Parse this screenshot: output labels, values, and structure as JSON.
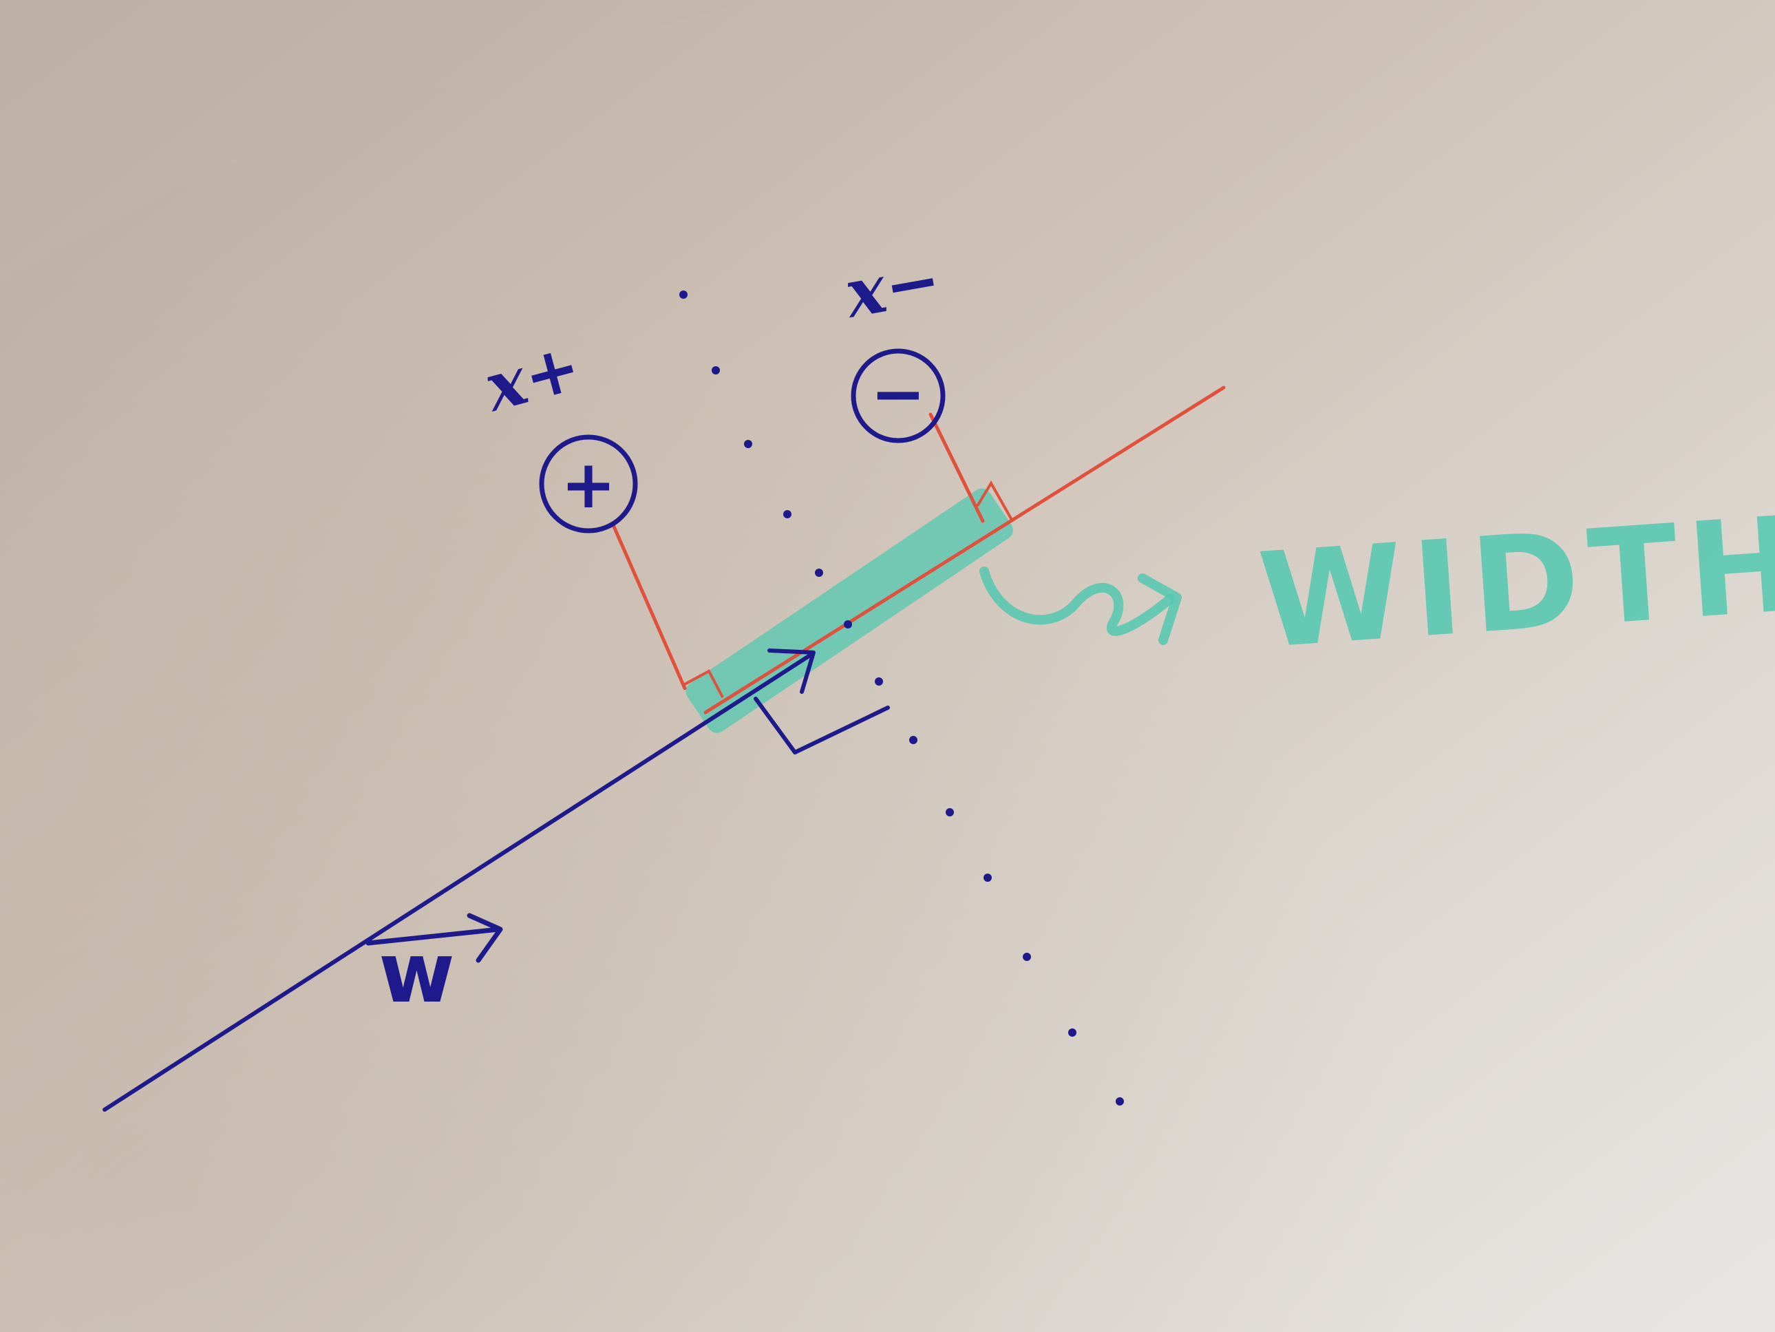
{
  "diagram": {
    "labels": {
      "positive_point": "x+",
      "negative_point": "x−",
      "positive_sign": "+",
      "negative_sign": "−",
      "weight_vector": "w",
      "width_annotation": "WIDTH"
    },
    "colors": {
      "paper_light": "#e9e6e3",
      "paper_shadow": "#bfb0a2",
      "ink_blue": "#1f1a8c",
      "ink_red": "#e0503c",
      "highlighter_teal": "#52c8b0"
    }
  }
}
